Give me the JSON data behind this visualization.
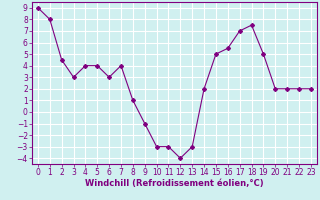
{
  "x": [
    0,
    1,
    2,
    3,
    4,
    5,
    6,
    7,
    8,
    9,
    10,
    11,
    12,
    13,
    14,
    15,
    16,
    17,
    18,
    19,
    20,
    21,
    22,
    23
  ],
  "y": [
    9,
    8,
    4.5,
    3,
    4,
    4,
    3,
    4,
    1,
    -1,
    -3,
    -3,
    -4,
    -3,
    2,
    5,
    5.5,
    7,
    7.5,
    5,
    2,
    2,
    2,
    2
  ],
  "line_color": "#800080",
  "marker": "D",
  "marker_size": 2,
  "bg_color": "#d0f0f0",
  "grid_color": "#ffffff",
  "xlabel": "Windchill (Refroidissement éolien,°C)",
  "xlabel_fontsize": 6.0,
  "tick_fontsize": 5.5,
  "xlim": [
    -0.5,
    23.5
  ],
  "ylim": [
    -4.5,
    9.5
  ],
  "yticks": [
    -4,
    -3,
    -2,
    -1,
    0,
    1,
    2,
    3,
    4,
    5,
    6,
    7,
    8,
    9
  ],
  "xticks": [
    0,
    1,
    2,
    3,
    4,
    5,
    6,
    7,
    8,
    9,
    10,
    11,
    12,
    13,
    14,
    15,
    16,
    17,
    18,
    19,
    20,
    21,
    22,
    23
  ]
}
